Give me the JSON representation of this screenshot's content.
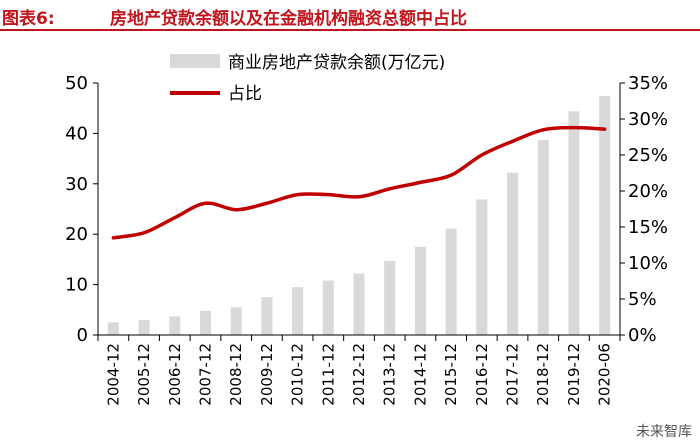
{
  "header": {
    "figure_label": "图表6:",
    "title": "房地产贷款余额以及在金融机构融资总额中占比"
  },
  "watermark": "未来智库",
  "chart_data": {
    "type": "bar",
    "categories": [
      "2004-12",
      "2005-12",
      "2006-12",
      "2007-12",
      "2008-12",
      "2009-12",
      "2010-12",
      "2011-12",
      "2012-12",
      "2013-12",
      "2014-12",
      "2015-12",
      "2016-12",
      "2017-12",
      "2018-12",
      "2019-12",
      "2020-06"
    ],
    "series": [
      {
        "name": "商业房地产贷款余额(万亿元)",
        "type": "bar",
        "axis": "left",
        "values": [
          2.5,
          3.0,
          3.7,
          4.8,
          5.5,
          7.5,
          9.5,
          10.8,
          12.2,
          14.7,
          17.5,
          21.1,
          26.9,
          32.2,
          38.7,
          44.4,
          47.4
        ]
      },
      {
        "name": "占比",
        "type": "line",
        "axis": "right",
        "values": [
          13.5,
          14.2,
          16.3,
          18.3,
          17.4,
          18.3,
          19.5,
          19.5,
          19.2,
          20.3,
          21.2,
          22.2,
          25.0,
          26.9,
          28.5,
          28.8,
          28.6
        ]
      }
    ],
    "left_axis": {
      "ylim": [
        0,
        50
      ],
      "ticks": [
        "0",
        "10",
        "20",
        "30",
        "40",
        "50"
      ]
    },
    "right_axis": {
      "ylim": [
        0,
        35
      ],
      "ticks": [
        "0%",
        "5%",
        "10%",
        "15%",
        "20%",
        "25%",
        "30%",
        "35%"
      ]
    },
    "legend": {
      "placement": "top-center",
      "entries": [
        "商业房地产贷款余额(万亿元)",
        "占比"
      ]
    },
    "colors": {
      "bar": "#d9d9d9",
      "line": "#c00000",
      "title": "#c0151c"
    },
    "grid": false
  }
}
